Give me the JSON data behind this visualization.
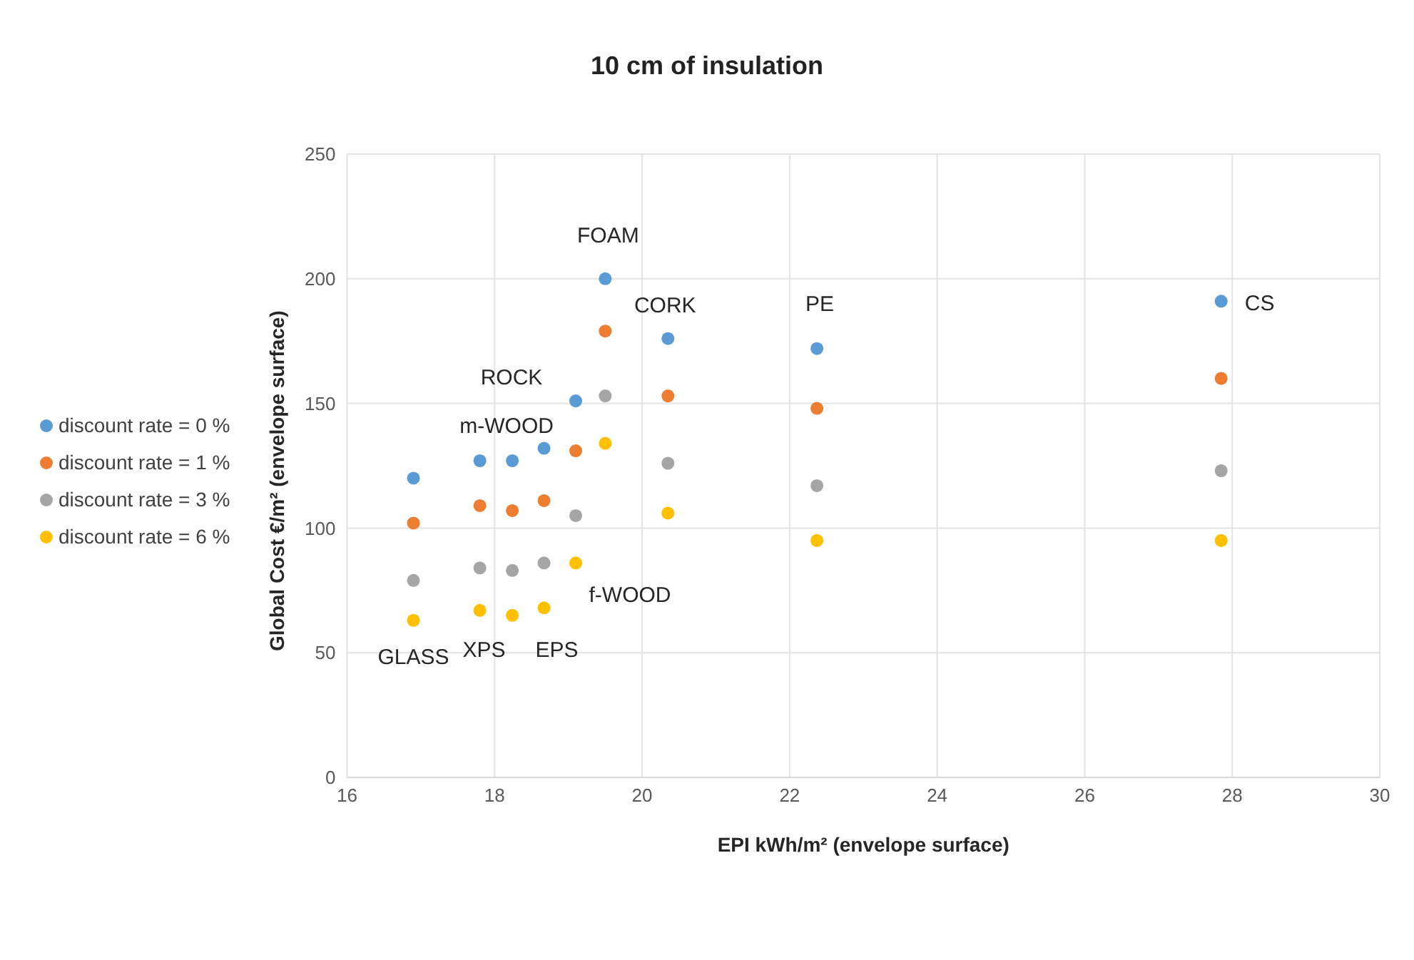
{
  "chart_data": {
    "type": "scatter",
    "title": "10 cm of insulation",
    "xlabel": "EPI kWh/m² (envelope surface)",
    "ylabel": "Global Cost €/m² (envelope surface)",
    "x": [
      16.9,
      17.8,
      18.24,
      18.67,
      19.1,
      19.5,
      20.35,
      22.37,
      27.85
    ],
    "series": [
      {
        "name": "discount rate = 0 %",
        "color": "#5b9bd5",
        "values": [
          120,
          127,
          127,
          132,
          151,
          200,
          176,
          172,
          191
        ]
      },
      {
        "name": "discount rate = 1 %",
        "color": "#ed7d31",
        "values": [
          102,
          109,
          107,
          111,
          131,
          179,
          153,
          148,
          160
        ]
      },
      {
        "name": "discount rate = 3 %",
        "color": "#a5a5a5",
        "values": [
          79,
          84,
          83,
          86,
          105,
          153,
          126,
          117,
          123
        ]
      },
      {
        "name": "discount rate = 6 %",
        "color": "#ffc000",
        "values": [
          63,
          67,
          65,
          68,
          86,
          134,
          106,
          95,
          95
        ]
      }
    ],
    "annotations": [
      {
        "text": "FOAM",
        "x": 19.5,
        "y": 200
      },
      {
        "text": "CORK",
        "x": 20.35,
        "y": 176
      },
      {
        "text": "PE",
        "x": 22.37,
        "y": 172
      },
      {
        "text": "CS",
        "x": 27.85,
        "y": 191
      },
      {
        "text": "ROCK",
        "x": 19.1,
        "y": 151
      },
      {
        "text": "m-WOOD",
        "x": 18.24,
        "y": 127
      },
      {
        "text": "f-WOOD",
        "x": 19.1,
        "y": 86
      },
      {
        "text": "GLASS",
        "x": 16.9,
        "y": 63
      },
      {
        "text": "XPS",
        "x": 17.8,
        "y": 67
      },
      {
        "text": "EPS",
        "x": 18.67,
        "y": 68
      }
    ],
    "xlim": [
      16,
      30
    ],
    "xticks": [
      16,
      18,
      20,
      22,
      24,
      26,
      28,
      30
    ],
    "ylim": [
      0,
      250
    ],
    "yticks": [
      0,
      50,
      100,
      150,
      200,
      250
    ],
    "grid": true,
    "legend": "left",
    "marker": "circle"
  }
}
